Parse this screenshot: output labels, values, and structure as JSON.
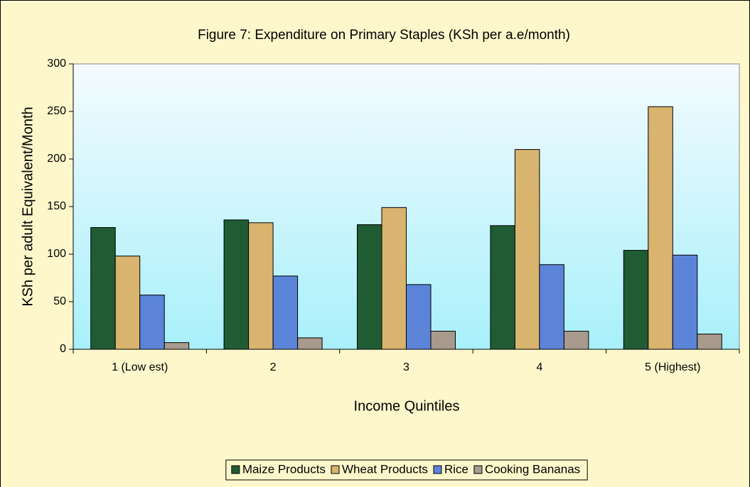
{
  "chart_data": {
    "type": "bar",
    "title": "Figure 7: Expenditure on Primary Staples (KSh per a.e/month)",
    "x_label": "Income Quintiles",
    "y_label": "KSh per adult Equivalent/Month",
    "categories": [
      "1 (Low est)",
      "2",
      "3",
      "4",
      "5 (Highest)"
    ],
    "series": [
      {
        "name": "Maize Products",
        "color": "#1f5c34",
        "values": [
          128,
          136,
          131,
          130,
          104
        ]
      },
      {
        "name": "Wheat Products",
        "color": "#d8b46e",
        "values": [
          98,
          133,
          149,
          210,
          255
        ]
      },
      {
        "name": "Rice",
        "color": "#5b84d9",
        "values": [
          57,
          77,
          68,
          89,
          99
        ]
      },
      {
        "name": "Cooking Bananas",
        "color": "#a89a8c",
        "values": [
          7,
          12,
          19,
          19,
          16
        ]
      }
    ],
    "ylim": [
      0,
      300
    ],
    "yticks": [
      0,
      50,
      100,
      150,
      200,
      250,
      300
    ],
    "grid": false,
    "legend": "bottom"
  }
}
